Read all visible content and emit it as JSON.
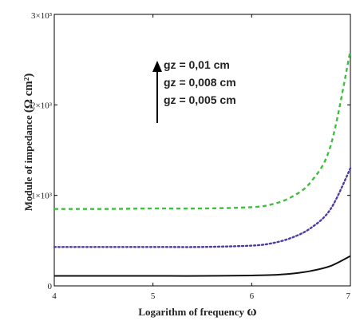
{
  "chart_data": {
    "type": "line",
    "title": "",
    "xlabel": "Logarithm of frequency",
    "xlabel_symbol": "ω",
    "ylabel_base": "Module of impedance",
    "ylabel_units": "(Ω cm²)",
    "xlim": [
      4,
      7
    ],
    "ylim": [
      0,
      3000
    ],
    "x_ticks": [
      {
        "value": 4,
        "label": "4"
      },
      {
        "value": 5,
        "label": "5"
      },
      {
        "value": 6,
        "label": "6"
      },
      {
        "value": 7,
        "label": "7"
      }
    ],
    "y_ticks": [
      {
        "value": 0,
        "label": "0"
      },
      {
        "value": 1000,
        "label": "1×10³"
      },
      {
        "value": 2000,
        "label": "2×10³"
      },
      {
        "value": 3000,
        "label": "3×10³"
      }
    ],
    "grid": false,
    "legend_placement": "top-center",
    "legend_arrow": "up",
    "series": [
      {
        "name": "gz = 0,01 cm",
        "color": "#3fbf3f",
        "style": "dashed",
        "x": [
          4.0,
          4.5,
          5.0,
          5.5,
          6.0,
          6.2,
          6.4,
          6.6,
          6.8,
          7.0
        ],
        "y": [
          850,
          850,
          855,
          855,
          870,
          900,
          980,
          1150,
          1550,
          2600
        ]
      },
      {
        "name": "gz = 0,008 cm",
        "color": "#4a3fa0",
        "style": "dotted",
        "x": [
          4.0,
          4.5,
          5.0,
          5.5,
          6.0,
          6.2,
          6.4,
          6.6,
          6.8,
          7.0
        ],
        "y": [
          430,
          430,
          430,
          430,
          445,
          470,
          530,
          640,
          850,
          1300
        ]
      },
      {
        "name": "gz = 0,005 cm",
        "color": "#111111",
        "style": "solid",
        "x": [
          4.0,
          4.5,
          5.0,
          5.5,
          6.0,
          6.2,
          6.4,
          6.6,
          6.8,
          7.0
        ],
        "y": [
          110,
          110,
          110,
          110,
          115,
          120,
          135,
          165,
          220,
          330
        ]
      }
    ]
  }
}
